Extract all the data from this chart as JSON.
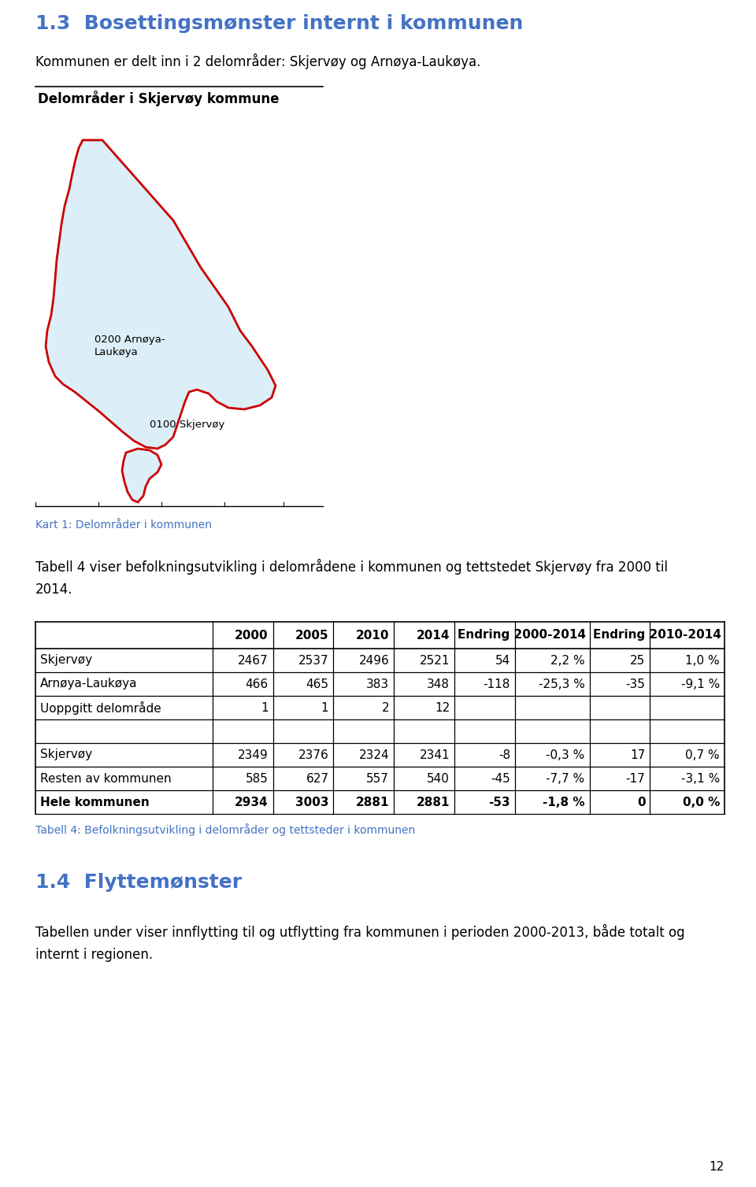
{
  "heading1": "1.3  Bosettingsmønster internt i kommunen",
  "heading1_color": "#4472C4",
  "para1": "Kommunen er delt inn i 2 delområder: Skjervøy og Arnøya-Laukøya.",
  "map_title": "Delområder i Skjervøy kommune",
  "map_caption": "Kart 1: Delområder i kommunen",
  "map_caption_color": "#4472C4",
  "label_arnoya": "0200 Arnøya-\nLaukøya",
  "label_skjervoy": "0100 Skjervøy",
  "para2_line1": "Tabell 4 viser befolkningsutvikling i delområdene i kommunen og tettstedet Skjervøy fra 2000 til",
  "para2_line2": "2014.",
  "table_caption": "Tabell 4: Befolkningsutvikling i delområder og tettsteder i kommunen",
  "table_caption_color": "#4472C4",
  "heading2": "1.4  Flyttemønster",
  "heading2_color": "#4472C4",
  "para3_line1": "Tabellen under viser innflytting til og utflytting fra kommunen i perioden 2000-2013, både totalt og",
  "para3_line2": "internt i regionen.",
  "page_number": "12",
  "table_rows": [
    [
      "Skjervøy",
      "2467",
      "2537",
      "2496",
      "2521",
      "54",
      "2,2 %",
      "25",
      "1,0 %"
    ],
    [
      "Arnøya-Laukøya",
      "466",
      "465",
      "383",
      "348",
      "-118",
      "-25,3 %",
      "-35",
      "-9,1 %"
    ],
    [
      "Uoppgitt delområde",
      "1",
      "1",
      "2",
      "12",
      "",
      "",
      "",
      ""
    ],
    [
      "",
      "",
      "",
      "",
      "",
      "",
      "",
      "",
      ""
    ],
    [
      "Skjervøy",
      "2349",
      "2376",
      "2324",
      "2341",
      "-8",
      "-0,3 %",
      "17",
      "0,7 %"
    ],
    [
      "Resten av kommunen",
      "585",
      "627",
      "557",
      "540",
      "-45",
      "-7,7 %",
      "-17",
      "-3,1 %"
    ],
    [
      "Hele kommunen",
      "2934",
      "3003",
      "2881",
      "2881",
      "-53",
      "-1,8 %",
      "0",
      "0,0 %"
    ]
  ],
  "bold_rows": [
    6
  ],
  "background_color": "#ffffff"
}
